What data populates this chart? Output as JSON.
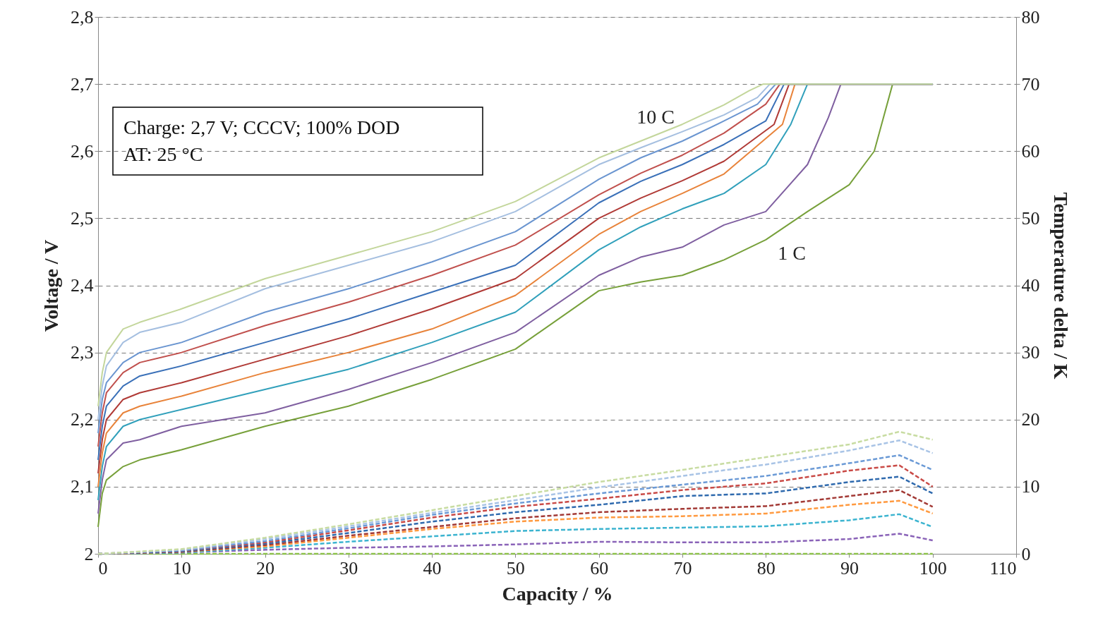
{
  "chart_data": {
    "type": "line",
    "xlabel": "Capacity / %",
    "ylabel": "Voltage / V",
    "y2label": "Temperature delta / K",
    "xlim": [
      0,
      110
    ],
    "xticks": [
      0,
      10,
      20,
      30,
      40,
      50,
      60,
      70,
      80,
      90,
      100,
      110
    ],
    "ylim": [
      2,
      2.8
    ],
    "yticks": [
      2,
      {
        "value": 2.1,
        "label": "2,1"
      },
      {
        "value": 2.2,
        "label": "2,2"
      },
      {
        "value": 2.3,
        "label": "2,3"
      },
      {
        "value": 2.4,
        "label": "2,4"
      },
      {
        "value": 2.5,
        "label": "2,5"
      },
      {
        "value": 2.6,
        "label": "2,6"
      },
      {
        "value": 2.7,
        "label": "2,7"
      },
      {
        "value": 2.8,
        "label": "2,8"
      }
    ],
    "y2lim": [
      0,
      80
    ],
    "y2ticks": [
      0,
      10,
      20,
      30,
      40,
      50,
      60,
      70,
      80
    ],
    "grid": "y",
    "marker": "none",
    "annotations": [
      "10 C",
      "1 C",
      "Charge: 2,7 V; CCCV; 100% DOD",
      "AT: 25 °C"
    ],
    "series": [
      {
        "color": "#77a03a",
        "line_style": "solid",
        "x": [
          0,
          0.5,
          1,
          3,
          5,
          10,
          20,
          30,
          40,
          50,
          60,
          65,
          70,
          75,
          80,
          85,
          90,
          93,
          95.2,
          100
        ],
        "values": [
          2.04,
          2.09,
          2.11,
          2.13,
          2.14,
          2.155,
          2.19,
          2.22,
          2.26,
          2.305,
          2.392,
          2.405,
          2.415,
          2.438,
          2.468,
          2.51,
          2.55,
          2.6,
          2.7,
          2.7
        ]
      },
      {
        "color": "#7f5fa0",
        "line_style": "solid",
        "x": [
          0,
          0.5,
          1,
          3,
          5,
          10,
          20,
          30,
          40,
          50,
          60,
          65,
          70,
          75,
          80,
          85,
          87.5,
          89,
          100
        ],
        "values": [
          2.06,
          2.11,
          2.14,
          2.165,
          2.17,
          2.19,
          2.21,
          2.245,
          2.285,
          2.33,
          2.415,
          2.442,
          2.457,
          2.49,
          2.51,
          2.58,
          2.65,
          2.7,
          2.7
        ]
      },
      {
        "color": "#31a0bb",
        "line_style": "solid",
        "x": [
          0,
          0.5,
          1,
          3,
          5,
          10,
          20,
          30,
          40,
          50,
          60,
          65,
          70,
          75,
          80,
          83,
          85,
          100
        ],
        "values": [
          2.08,
          2.13,
          2.16,
          2.19,
          2.2,
          2.215,
          2.245,
          2.275,
          2.315,
          2.36,
          2.453,
          2.487,
          2.514,
          2.537,
          2.58,
          2.64,
          2.7,
          2.7
        ]
      },
      {
        "color": "#e8833a",
        "line_style": "solid",
        "x": [
          0,
          0.5,
          1,
          3,
          5,
          10,
          20,
          30,
          40,
          50,
          60,
          65,
          70,
          75,
          82,
          83.5,
          100
        ],
        "values": [
          2.1,
          2.15,
          2.18,
          2.21,
          2.22,
          2.235,
          2.27,
          2.3,
          2.335,
          2.385,
          2.476,
          2.51,
          2.537,
          2.566,
          2.64,
          2.7,
          2.7
        ]
      },
      {
        "color": "#b03a36",
        "line_style": "solid",
        "x": [
          0,
          0.5,
          1,
          3,
          5,
          10,
          20,
          30,
          40,
          50,
          60,
          65,
          70,
          75,
          81,
          82.8,
          100
        ],
        "values": [
          2.12,
          2.17,
          2.2,
          2.23,
          2.24,
          2.255,
          2.29,
          2.325,
          2.365,
          2.41,
          2.5,
          2.53,
          2.556,
          2.585,
          2.64,
          2.7,
          2.7
        ]
      },
      {
        "color": "#3a70b8",
        "line_style": "solid",
        "x": [
          0,
          0.5,
          1,
          3,
          5,
          10,
          20,
          30,
          40,
          50,
          60,
          65,
          70,
          75,
          80,
          82.2,
          100
        ],
        "values": [
          2.14,
          2.19,
          2.22,
          2.25,
          2.265,
          2.28,
          2.315,
          2.35,
          2.39,
          2.43,
          2.523,
          2.555,
          2.58,
          2.61,
          2.645,
          2.7,
          2.7
        ]
      },
      {
        "color": "#c0504d",
        "line_style": "solid",
        "x": [
          0,
          0.5,
          1,
          3,
          5,
          10,
          20,
          30,
          40,
          50,
          60,
          65,
          70,
          75,
          80,
          81.7,
          100
        ],
        "values": [
          2.16,
          2.21,
          2.24,
          2.27,
          2.285,
          2.3,
          2.34,
          2.375,
          2.415,
          2.46,
          2.535,
          2.567,
          2.594,
          2.627,
          2.67,
          2.7,
          2.7
        ]
      },
      {
        "color": "#6a95d0",
        "line_style": "solid",
        "x": [
          0,
          0.5,
          1,
          3,
          5,
          10,
          20,
          30,
          40,
          50,
          60,
          65,
          70,
          75,
          79,
          81.2,
          100
        ],
        "values": [
          2.18,
          2.23,
          2.255,
          2.285,
          2.3,
          2.315,
          2.36,
          2.395,
          2.435,
          2.48,
          2.558,
          2.59,
          2.615,
          2.645,
          2.67,
          2.7,
          2.7
        ]
      },
      {
        "color": "#a5bfe0",
        "line_style": "solid",
        "x": [
          0,
          0.5,
          1,
          3,
          5,
          10,
          20,
          30,
          40,
          50,
          60,
          65,
          70,
          75,
          79,
          80.5,
          100
        ],
        "values": [
          2.2,
          2.25,
          2.28,
          2.315,
          2.33,
          2.345,
          2.395,
          2.43,
          2.465,
          2.51,
          2.58,
          2.605,
          2.629,
          2.654,
          2.68,
          2.7,
          2.7
        ]
      },
      {
        "color": "#c3d69b",
        "line_style": "solid",
        "x": [
          0,
          0.5,
          1,
          3,
          5,
          10,
          20,
          30,
          40,
          50,
          60,
          65,
          70,
          75,
          78,
          79.7,
          100
        ],
        "values": [
          2.22,
          2.27,
          2.3,
          2.335,
          2.345,
          2.365,
          2.41,
          2.445,
          2.48,
          2.525,
          2.59,
          2.615,
          2.64,
          2.669,
          2.69,
          2.7,
          2.7
        ]
      },
      {
        "color": "#8cc04a",
        "line_style": "dashed",
        "axis": "y2",
        "x": [
          0,
          10,
          20,
          30,
          40,
          50,
          60,
          70,
          80,
          90,
          96,
          100
        ],
        "values": [
          0,
          0,
          0,
          0,
          0,
          0,
          0,
          0,
          0,
          0,
          0,
          0
        ]
      },
      {
        "color": "#8a63b8",
        "line_style": "dashed",
        "axis": "y2",
        "x": [
          0,
          10,
          20,
          30,
          40,
          50,
          60,
          70,
          80,
          90,
          96,
          100
        ],
        "values": [
          0,
          0.2,
          0.6,
          0.9,
          1.1,
          1.4,
          1.8,
          1.7,
          1.7,
          2.2,
          3.0,
          2.0
        ]
      },
      {
        "color": "#3cb4d0",
        "line_style": "dashed",
        "axis": "y2",
        "x": [
          0,
          10,
          20,
          30,
          40,
          50,
          60,
          70,
          80,
          90,
          96,
          100
        ],
        "values": [
          0,
          0.2,
          0.9,
          1.8,
          2.6,
          3.4,
          3.7,
          3.9,
          4.1,
          5.0,
          5.9,
          4.0
        ]
      },
      {
        "color": "#ff9a40",
        "line_style": "dashed",
        "axis": "y2",
        "x": [
          0,
          10,
          20,
          30,
          40,
          50,
          60,
          70,
          80,
          90,
          96,
          100
        ],
        "values": [
          0,
          0.3,
          1.1,
          2.4,
          3.7,
          4.8,
          5.4,
          5.6,
          6.0,
          7.3,
          7.9,
          6.0
        ]
      },
      {
        "color": "#a33a36",
        "line_style": "dashed",
        "axis": "y2",
        "x": [
          0,
          10,
          20,
          30,
          40,
          50,
          60,
          70,
          80,
          90,
          96,
          100
        ],
        "values": [
          0,
          0.3,
          1.3,
          2.7,
          4.0,
          5.3,
          6.2,
          6.7,
          7.1,
          8.6,
          9.5,
          7.0
        ]
      },
      {
        "color": "#2f6aae",
        "line_style": "dashed",
        "axis": "y2",
        "x": [
          0,
          10,
          20,
          30,
          40,
          50,
          60,
          70,
          80,
          90,
          96,
          100
        ],
        "values": [
          0,
          0.4,
          1.5,
          3.1,
          4.8,
          6.2,
          7.3,
          8.6,
          9.0,
          10.7,
          11.5,
          9.0
        ]
      },
      {
        "color": "#c94a46",
        "line_style": "dashed",
        "axis": "y2",
        "x": [
          0,
          10,
          20,
          30,
          40,
          50,
          60,
          70,
          80,
          90,
          96,
          100
        ],
        "values": [
          0,
          0.5,
          1.7,
          3.5,
          5.4,
          7.0,
          8.2,
          9.5,
          10.5,
          12.4,
          13.2,
          10.0
        ]
      },
      {
        "color": "#6b9ad6",
        "line_style": "dashed",
        "axis": "y2",
        "x": [
          0,
          10,
          20,
          30,
          40,
          50,
          60,
          70,
          80,
          90,
          96,
          100
        ],
        "values": [
          0,
          0.5,
          1.9,
          3.8,
          5.8,
          7.5,
          9.0,
          10.3,
          11.6,
          13.5,
          14.7,
          12.5
        ]
      },
      {
        "color": "#a9c4e6",
        "line_style": "dashed",
        "axis": "y2",
        "x": [
          0,
          10,
          20,
          30,
          40,
          50,
          60,
          70,
          80,
          90,
          96,
          100
        ],
        "values": [
          0,
          0.6,
          2.2,
          4.1,
          6.1,
          8.0,
          9.9,
          11.6,
          13.3,
          15.4,
          16.9,
          15.0
        ]
      },
      {
        "color": "#c8dca2",
        "line_style": "dashed",
        "axis": "y2",
        "x": [
          0,
          10,
          20,
          30,
          40,
          50,
          60,
          70,
          80,
          90,
          96,
          100
        ],
        "values": [
          0,
          0.7,
          2.4,
          4.4,
          6.5,
          8.6,
          10.7,
          12.5,
          14.4,
          16.3,
          18.2,
          17.0
        ]
      }
    ]
  }
}
